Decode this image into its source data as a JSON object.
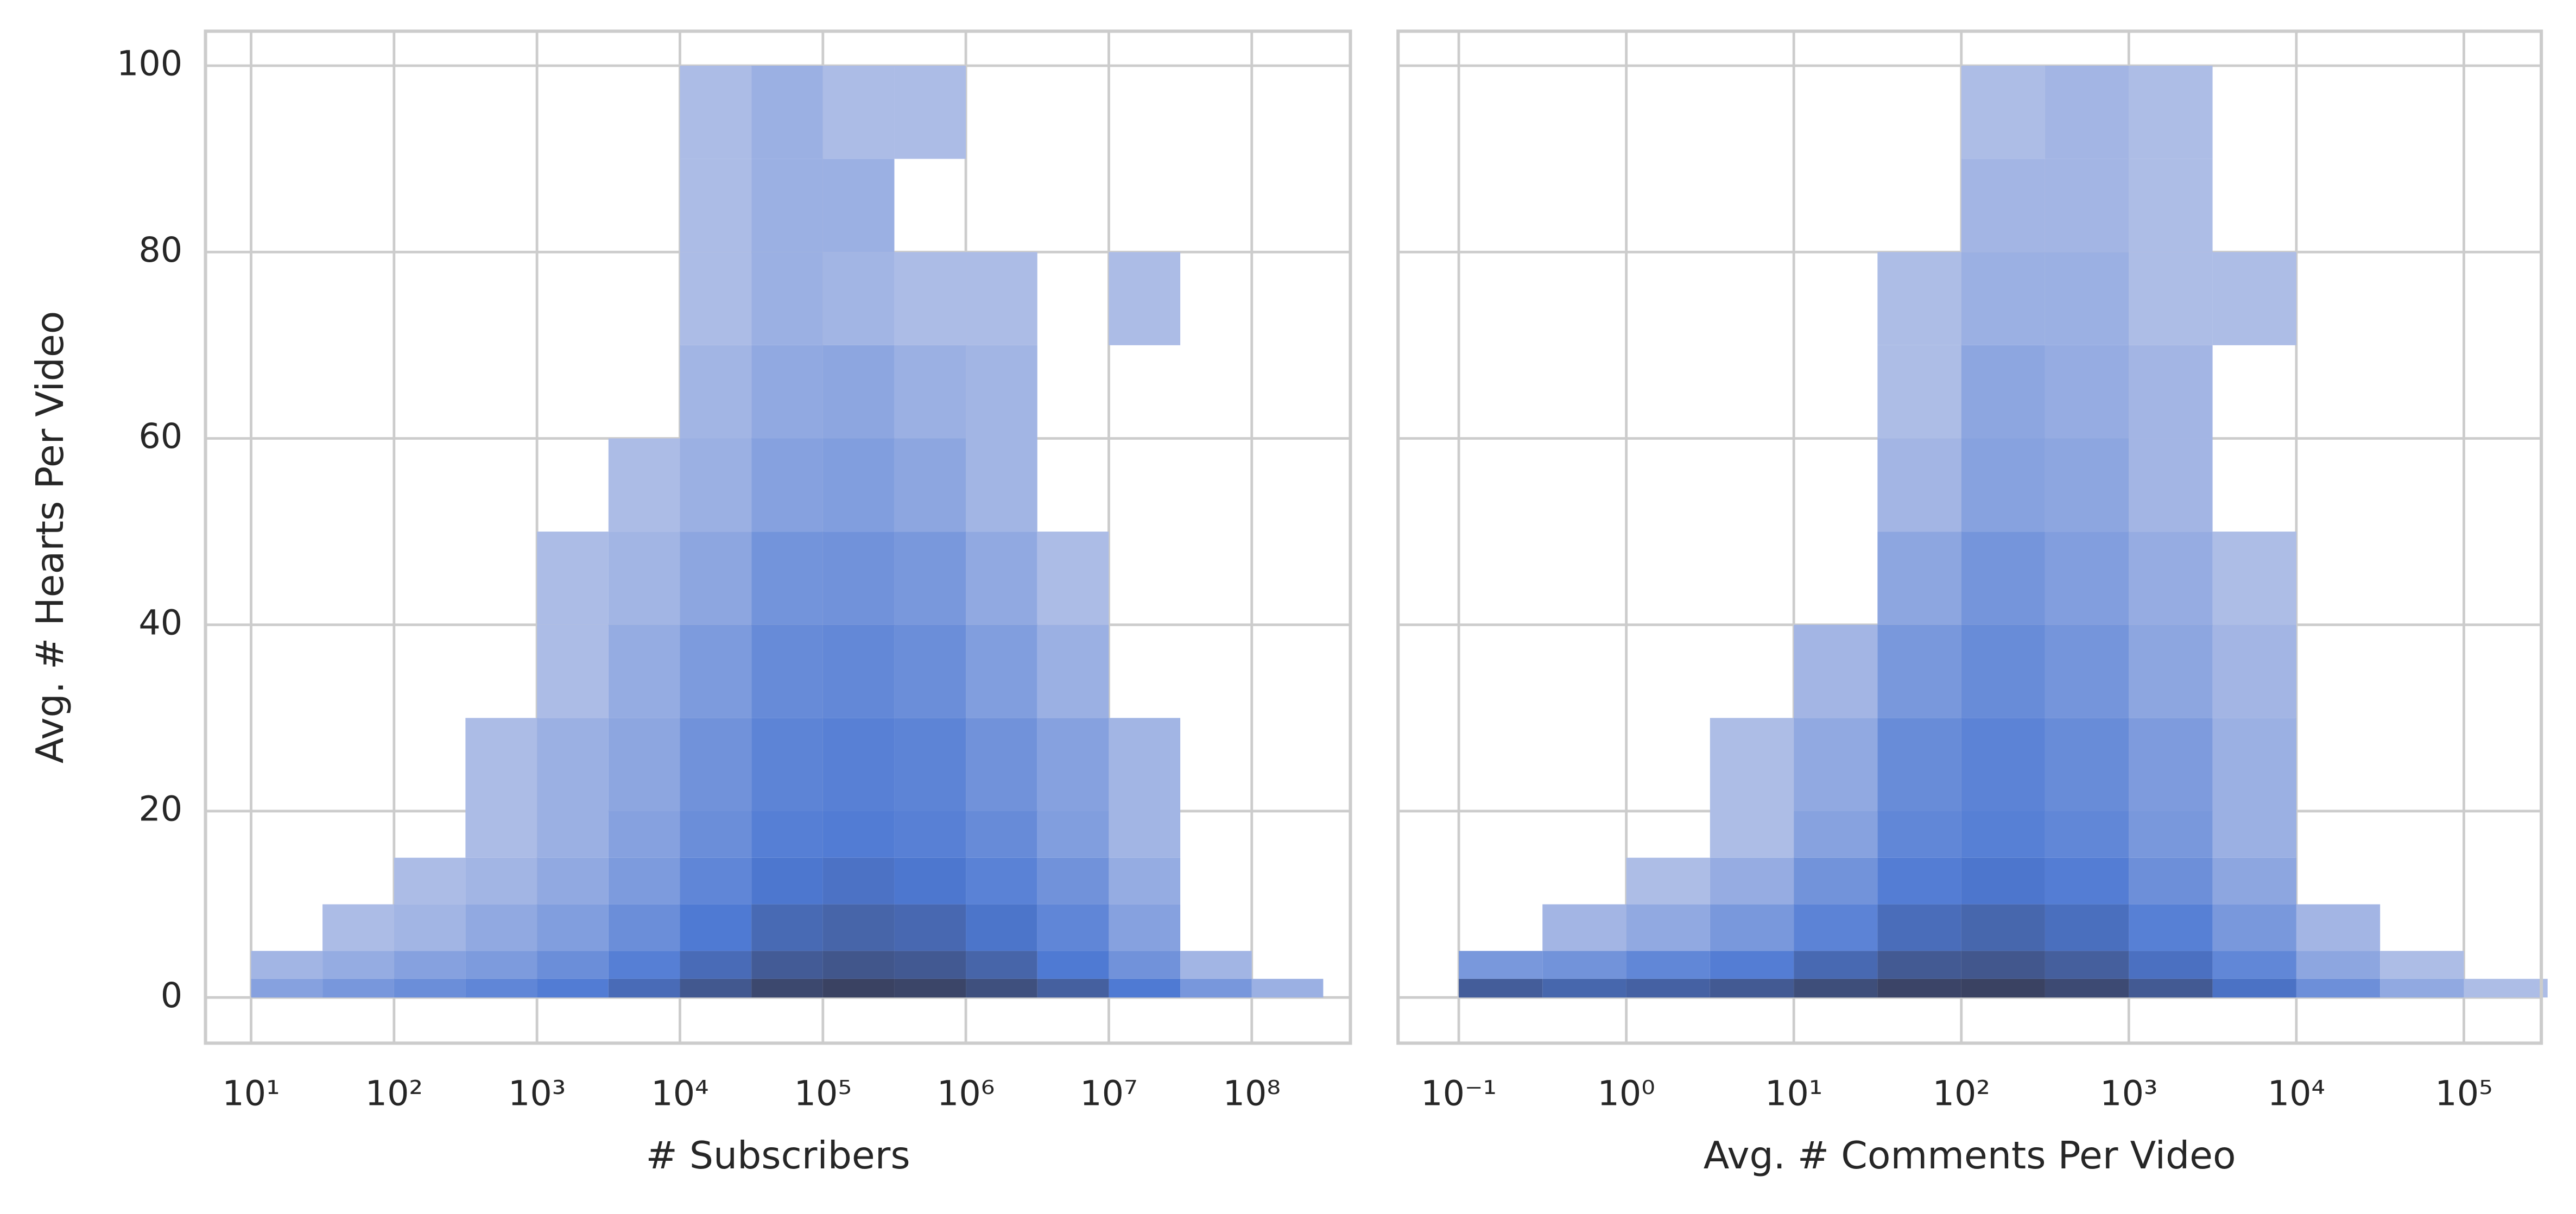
{
  "chart_data": [
    {
      "type": "histogram2d",
      "xlabel": "# Subscribers",
      "ylabel": "Avg. # Hearts Per Video",
      "xscale": "log",
      "grid": true,
      "ytick_labels": true,
      "color": "#4878d0",
      "xlim": [
        4.8,
        490000000
      ],
      "ylim": [
        -4.9,
        103.7
      ],
      "xticks": [
        {
          "value": 10,
          "label": "10¹"
        },
        {
          "value": 100,
          "label": "10²"
        },
        {
          "value": 1000,
          "label": "10³"
        },
        {
          "value": 10000,
          "label": "10⁴"
        },
        {
          "value": 100000,
          "label": "10⁵"
        },
        {
          "value": 1000000,
          "label": "10⁶"
        },
        {
          "value": 10000000,
          "label": "10⁷"
        },
        {
          "value": 100000000,
          "label": "10⁸"
        }
      ],
      "yticks": [
        0,
        20,
        40,
        60,
        80,
        100
      ],
      "xbins": [
        10,
        31.6,
        100,
        316,
        1000,
        3162,
        10000,
        31623,
        100000,
        316228,
        1000000,
        3162278,
        10000000,
        31622777,
        100000000,
        316227766
      ],
      "ybins": [
        0,
        2,
        5,
        10,
        15,
        20,
        30,
        40,
        50,
        60,
        70,
        80,
        90,
        100
      ],
      "counts": [
        [
          8,
          15,
          25,
          40,
          70,
          150,
          350,
          700,
          900,
          800,
          500,
          250,
          80,
          15,
          3
        ],
        [
          2,
          4,
          8,
          12,
          25,
          60,
          150,
          300,
          380,
          330,
          200,
          80,
          20,
          2,
          0
        ],
        [
          0,
          1,
          2,
          5,
          10,
          25,
          80,
          160,
          200,
          170,
          100,
          40,
          8,
          0,
          0
        ],
        [
          0,
          0,
          1,
          2,
          5,
          12,
          40,
          90,
          110,
          90,
          50,
          20,
          4,
          0,
          0
        ],
        [
          0,
          0,
          0,
          1,
          3,
          8,
          25,
          60,
          70,
          55,
          30,
          10,
          2,
          0,
          0
        ],
        [
          0,
          0,
          0,
          1,
          3,
          6,
          20,
          45,
          55,
          45,
          20,
          8,
          2,
          0,
          0
        ],
        [
          0,
          0,
          0,
          0,
          1,
          4,
          12,
          30,
          35,
          25,
          10,
          3,
          0,
          0,
          0
        ],
        [
          0,
          0,
          0,
          0,
          1,
          2,
          6,
          18,
          20,
          14,
          5,
          1,
          0,
          0,
          0
        ],
        [
          0,
          0,
          0,
          0,
          0,
          1,
          3,
          8,
          10,
          6,
          2,
          0,
          0,
          0,
          0
        ],
        [
          0,
          0,
          0,
          0,
          0,
          0,
          2,
          5,
          6,
          3,
          2,
          0,
          0,
          0,
          0
        ],
        [
          0,
          0,
          0,
          0,
          0,
          0,
          1,
          3,
          2,
          1,
          1,
          0,
          1,
          0,
          0
        ],
        [
          0,
          0,
          0,
          0,
          0,
          0,
          1,
          3,
          3,
          0,
          0,
          0,
          0,
          0,
          0
        ],
        [
          0,
          0,
          0,
          0,
          0,
          0,
          1,
          3,
          1,
          1,
          0,
          0,
          0,
          0,
          0
        ]
      ]
    },
    {
      "type": "histogram2d",
      "xlabel": "Avg. # Comments Per Video",
      "xscale": "log",
      "grid": true,
      "ytick_labels": false,
      "color": "#4878d0",
      "xlim": [
        0.0434,
        290000
      ],
      "ylim": [
        -4.9,
        103.7
      ],
      "xticks": [
        {
          "value": 0.1,
          "label": "10⁻¹"
        },
        {
          "value": 1,
          "label": "10⁰"
        },
        {
          "value": 10,
          "label": "10¹"
        },
        {
          "value": 100,
          "label": "10²"
        },
        {
          "value": 1000,
          "label": "10³"
        },
        {
          "value": 10000,
          "label": "10⁴"
        },
        {
          "value": 100000,
          "label": "10⁵"
        }
      ],
      "yticks": [
        0,
        20,
        40,
        60,
        80,
        100
      ],
      "xbins": [
        0.1,
        0.316,
        1,
        3.16,
        10,
        31.6,
        100,
        316,
        1000,
        3162,
        10000,
        31623,
        100000,
        316228
      ],
      "ybins": [
        0,
        2,
        5,
        10,
        15,
        20,
        30,
        40,
        50,
        60,
        70,
        80,
        90,
        100
      ],
      "counts": [
        [
          300,
          200,
          250,
          350,
          600,
          900,
          1000,
          700,
          350,
          120,
          25,
          5,
          1
        ],
        [
          15,
          20,
          40,
          70,
          180,
          350,
          400,
          280,
          130,
          40,
          6,
          1,
          0
        ],
        [
          0,
          2,
          5,
          15,
          50,
          150,
          200,
          140,
          60,
          15,
          2,
          0,
          0
        ],
        [
          0,
          0,
          1,
          4,
          20,
          70,
          100,
          70,
          25,
          6,
          0,
          0,
          0
        ],
        [
          0,
          0,
          0,
          1,
          8,
          40,
          60,
          40,
          15,
          3,
          0,
          0,
          0
        ],
        [
          0,
          0,
          0,
          1,
          5,
          30,
          50,
          30,
          12,
          3,
          0,
          0,
          0
        ],
        [
          0,
          0,
          0,
          0,
          2,
          15,
          30,
          18,
          6,
          2,
          0,
          0,
          0
        ],
        [
          0,
          0,
          0,
          0,
          0,
          6,
          18,
          10,
          4,
          1,
          0,
          0,
          0
        ],
        [
          0,
          0,
          0,
          0,
          0,
          2,
          8,
          6,
          2,
          0,
          0,
          0,
          0
        ],
        [
          0,
          0,
          0,
          0,
          0,
          1,
          6,
          4,
          2,
          0,
          0,
          0,
          0
        ],
        [
          0,
          0,
          0,
          0,
          0,
          1,
          3,
          3,
          1,
          1,
          0,
          0,
          0
        ],
        [
          0,
          0,
          0,
          0,
          0,
          0,
          2,
          2,
          1,
          0,
          0,
          0,
          0
        ],
        [
          0,
          0,
          0,
          0,
          0,
          0,
          1,
          2,
          1,
          0,
          0,
          0,
          0
        ]
      ]
    }
  ]
}
